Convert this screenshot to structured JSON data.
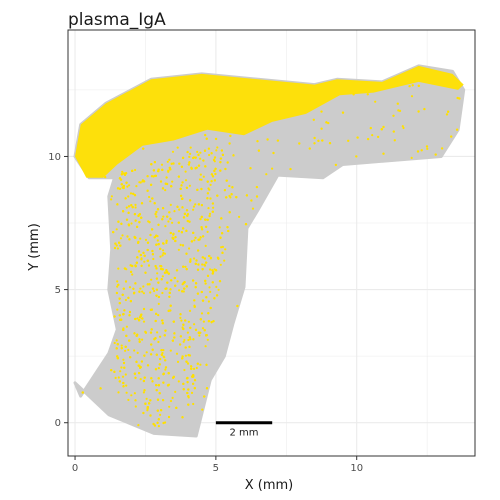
{
  "chart_data": {
    "type": "scatter",
    "title": "plasma_IgA",
    "xlabel": "X (mm)",
    "ylabel": "Y (mm)",
    "xlim": [
      -0.25,
      14.2
    ],
    "ylim": [
      -1.25,
      14.75
    ],
    "x_ticks": [
      0,
      5,
      10
    ],
    "y_ticks": [
      0,
      5,
      10
    ],
    "grid": true,
    "legend": "none",
    "colors": {
      "background_cells": "#cccccc",
      "highlight_cells": "#ffe000",
      "panel_border": "#333333",
      "grid": "#ebebeb"
    },
    "series": [
      {
        "role": "all cells",
        "color": "#cccccc",
        "shape": [
          [
            0.2,
            11.2
          ],
          [
            1.1,
            12.0
          ],
          [
            2.7,
            12.9
          ],
          [
            4.5,
            13.1
          ],
          [
            6.5,
            12.9
          ],
          [
            8.5,
            12.7
          ],
          [
            9.3,
            12.9
          ],
          [
            10.9,
            12.8
          ],
          [
            12.2,
            13.4
          ],
          [
            13.4,
            13.2
          ],
          [
            13.8,
            12.5
          ],
          [
            13.6,
            11.0
          ],
          [
            13.0,
            10.0
          ],
          [
            9.5,
            9.7
          ],
          [
            8.8,
            9.2
          ],
          [
            7.2,
            9.3
          ],
          [
            6.5,
            8.0
          ],
          [
            6.1,
            7.3
          ],
          [
            6.0,
            5.1
          ],
          [
            5.6,
            3.7
          ],
          [
            5.3,
            2.5
          ],
          [
            4.8,
            1.6
          ],
          [
            4.3,
            -0.5
          ],
          [
            2.8,
            -0.4
          ],
          [
            1.2,
            0.3
          ],
          [
            0.0,
            1.5
          ],
          [
            0.2,
            1.0
          ],
          [
            1.2,
            2.6
          ],
          [
            1.5,
            3.5
          ],
          [
            1.2,
            5.0
          ],
          [
            1.3,
            6.5
          ],
          [
            1.2,
            8.5
          ],
          [
            1.4,
            9.2
          ],
          [
            0.5,
            9.2
          ],
          [
            0.0,
            10.0
          ]
        ]
      },
      {
        "role": "plasma_IgA cells",
        "color": "#ffe000",
        "dense_region": [
          [
            0.2,
            11.2
          ],
          [
            1.1,
            12.0
          ],
          [
            2.7,
            12.9
          ],
          [
            4.5,
            13.1
          ],
          [
            6.5,
            12.9
          ],
          [
            8.5,
            12.7
          ],
          [
            9.3,
            12.9
          ],
          [
            10.9,
            12.8
          ],
          [
            12.2,
            13.4
          ],
          [
            13.4,
            13.1
          ],
          [
            13.8,
            12.7
          ],
          [
            13.6,
            12.5
          ],
          [
            12.2,
            12.8
          ],
          [
            10.6,
            12.4
          ],
          [
            9.4,
            12.3
          ],
          [
            8.2,
            11.6
          ],
          [
            7.0,
            11.3
          ],
          [
            6.0,
            10.8
          ],
          [
            4.7,
            11.0
          ],
          [
            3.5,
            10.6
          ],
          [
            2.4,
            10.4
          ],
          [
            1.5,
            9.7
          ],
          [
            1.0,
            9.2
          ],
          [
            0.4,
            9.2
          ],
          [
            0.0,
            10.0
          ]
        ],
        "sparse_region": [
          [
            1.2,
            9.3
          ],
          [
            5.2,
            10.6
          ],
          [
            5.6,
            8.6
          ],
          [
            5.3,
            6.0
          ],
          [
            5.0,
            4.2
          ],
          [
            4.6,
            2.4
          ],
          [
            4.2,
            0.5
          ],
          [
            2.8,
            -0.2
          ],
          [
            1.5,
            1.0
          ],
          [
            1.2,
            3.5
          ],
          [
            1.5,
            5.5
          ],
          [
            1.3,
            7.5
          ]
        ],
        "point_count": 1800
      }
    ],
    "scale_bar": {
      "label": "2 mm",
      "length": 2,
      "start_x": 5,
      "y": 0
    }
  }
}
